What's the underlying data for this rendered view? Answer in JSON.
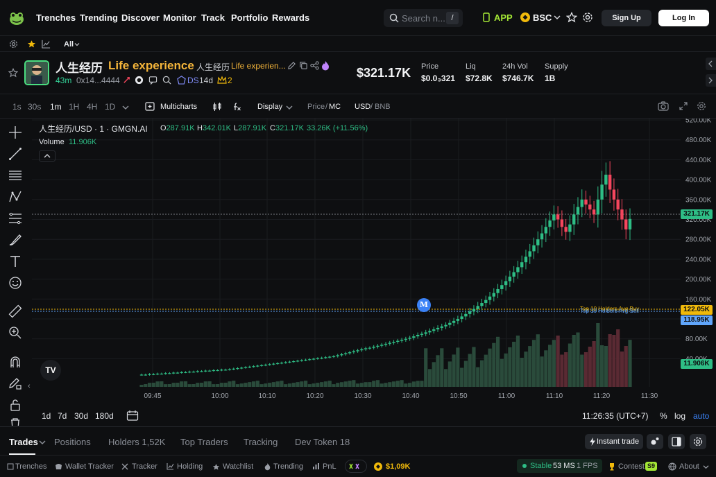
{
  "nav": {
    "links": [
      "Trenches",
      "Trending",
      "Discover",
      "Monitor",
      "Track",
      "Portfolio",
      "Rewards"
    ],
    "search_placeholder": "Search n...",
    "search_shortcut": "/",
    "app_label": "APP",
    "chain_label": "BSC",
    "signup_label": "Sign Up",
    "login_label": "Log In"
  },
  "filter": {
    "all_label": "All"
  },
  "token": {
    "name_cn": "人生经历",
    "name_en": "Life experience",
    "name_cn_small": "人生经历",
    "name_en_small": "Life experien...",
    "age": "43m",
    "address": "0x14...4444",
    "ds_label": "DS",
    "ds_age": "14d",
    "crown_count": "2",
    "market_cap": "$321.17K"
  },
  "stats": [
    {
      "label": "Price",
      "value": "$0.0₃321"
    },
    {
      "label": "Liq",
      "value": "$72.8K"
    },
    {
      "label": "24h Vol",
      "value": "$746.7K"
    },
    {
      "label": "Supply",
      "value": "1B"
    }
  ],
  "toolbar": {
    "timeframes": [
      "1s",
      "30s",
      "1m",
      "1H",
      "4H",
      "1D"
    ],
    "active_timeframe": "1m",
    "multicharts_label": "Multicharts",
    "display_label": "Display",
    "price_label": "Price",
    "mc_label": "MC",
    "usd_label": "USD",
    "bnb_label": "BNB"
  },
  "legend": {
    "symbol": "人生经历/USD · 1 · GMGN.AI",
    "o": "287.91K",
    "h": "342.01K",
    "l": "287.91K",
    "c": "321.17K",
    "change": "33.26K (+11.56%)",
    "volume_label": "Volume",
    "volume_value": "11.906K"
  },
  "chart_data": {
    "type": "candlestick",
    "y_axis_ticks": [
      "520.00K",
      "480.00K",
      "440.00K",
      "400.00K",
      "360.00K",
      "320.00K",
      "280.00K",
      "240.00K",
      "200.00K",
      "160.00K",
      "120.00K",
      "80.00K",
      "40.00K"
    ],
    "x_axis_ticks": [
      "09:45",
      "10:00",
      "10:10",
      "10:20",
      "10:30",
      "10:40",
      "10:50",
      "11:00",
      "11:10",
      "11:20",
      "11:30"
    ],
    "last_close": "321.17K",
    "top_holders_avg_buy": "122.05K",
    "top_holders_avg_sell": "118.95K",
    "top_holders_buy_label": "Top 10 Holders Avg Buy",
    "top_holders_sell_label": "Top 10 Holders Avg Sell",
    "volume_last": "11.906K",
    "marker_label": "M",
    "candles_close": [
      8,
      8,
      9,
      9,
      10,
      10,
      11,
      11,
      12,
      12,
      13,
      13,
      14,
      14,
      15,
      15,
      16,
      16,
      17,
      17,
      18,
      18,
      19,
      20,
      21,
      22,
      23,
      24,
      25,
      26,
      27,
      28,
      29,
      30,
      31,
      32,
      33,
      34,
      35,
      36,
      37,
      38,
      39,
      40,
      41,
      42,
      43,
      44,
      45,
      47,
      49,
      51,
      53,
      55,
      57,
      59,
      61,
      62,
      64,
      66,
      68,
      70,
      72,
      74,
      76,
      78,
      80,
      82,
      85,
      88,
      90,
      93,
      96,
      99,
      102,
      105,
      108,
      112,
      116,
      120,
      125,
      130,
      135,
      140,
      146,
      152,
      158,
      165,
      172,
      180,
      188,
      196,
      205,
      214,
      224,
      234,
      245,
      256,
      268,
      280,
      292,
      305,
      318,
      330,
      320,
      305,
      295,
      310,
      330,
      345,
      360,
      350,
      340,
      330,
      360,
      390,
      410,
      380,
      360,
      340,
      320,
      300,
      321
    ]
  },
  "chart_bottom": {
    "ranges": [
      "1d",
      "7d",
      "30d",
      "180d"
    ],
    "time": "11:26:35 (UTC+7)",
    "pct_label": "%",
    "log_label": "log",
    "auto_label": "auto"
  },
  "tabs": {
    "items": [
      "Trades",
      "Positions",
      "Holders 1,52K",
      "Top Traders",
      "Tracking",
      "Dev Token 18"
    ],
    "active": "Trades",
    "instant_trade_label": "Instant trade"
  },
  "footer": {
    "items": [
      "Trenches",
      "Wallet Tracker",
      "Tracker",
      "Holding",
      "Watchlist",
      "Trending",
      "PnL"
    ],
    "balance": "$1,09K",
    "stable_label": "Stable",
    "ms": "53 MS",
    "fps": "1 FPS",
    "contest_label": "Contest",
    "contest_badge": "S9",
    "about_label": "About"
  },
  "colors": {
    "up": "#2ebd85",
    "down": "#f6465d",
    "accent_yellow": "#f0b90b",
    "accent_green": "#34d399"
  }
}
